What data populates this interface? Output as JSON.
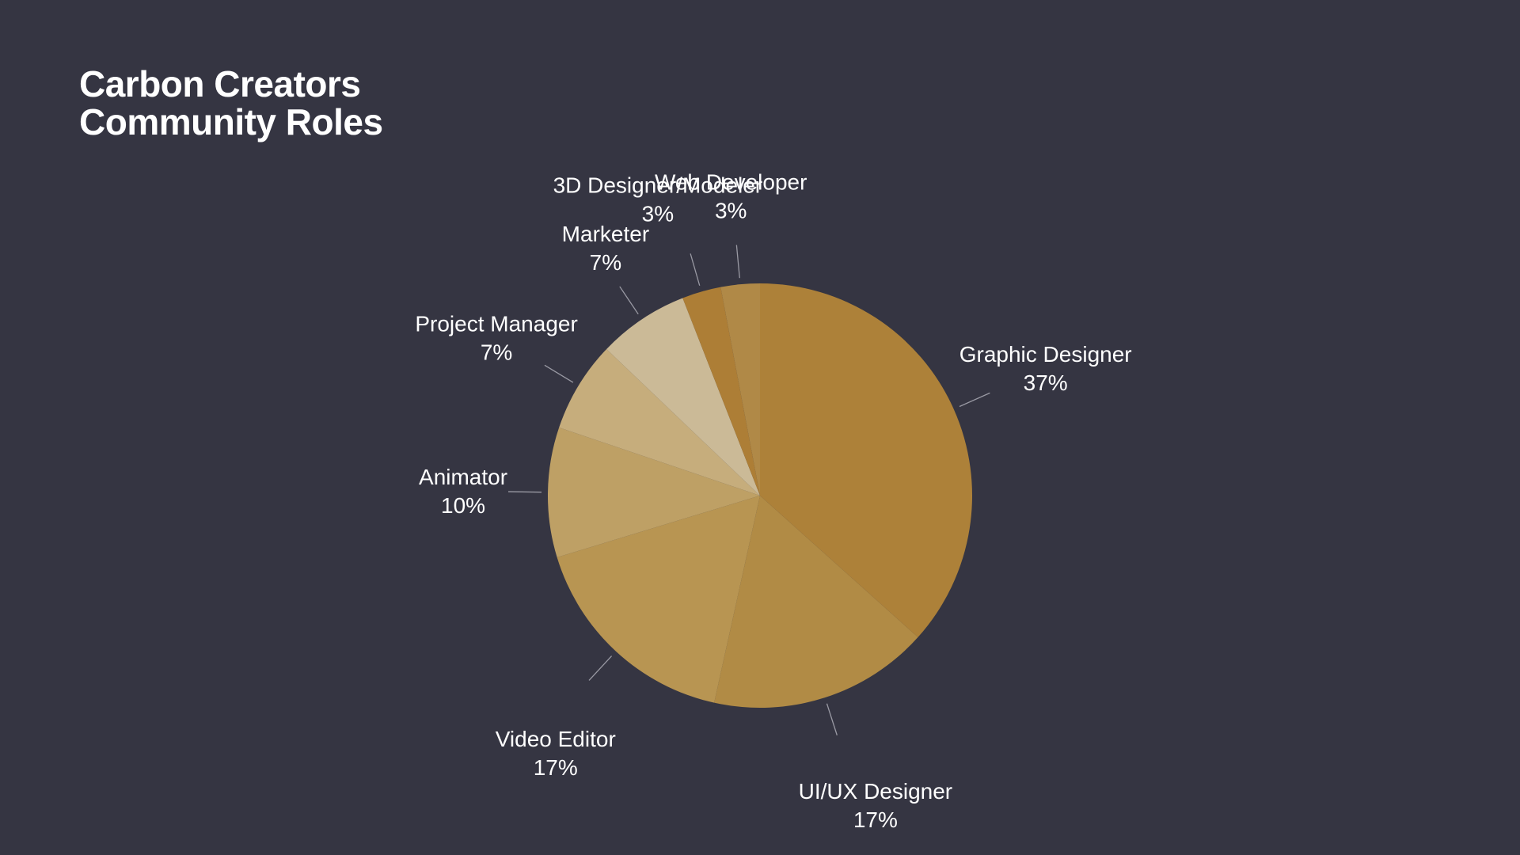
{
  "title_lines": [
    "Carbon Creators",
    "Community Roles"
  ],
  "chart_data": {
    "type": "pie",
    "title": "Carbon Creators Community Roles",
    "start_angle_deg": 0,
    "direction": "clockwise",
    "slices": [
      {
        "label": "Graphic Designer",
        "value": 37,
        "value_label": "37%",
        "color": "#ad8139"
      },
      {
        "label": "UI/UX Designer",
        "value": 17,
        "value_label": "17%",
        "color": "#b18b45"
      },
      {
        "label": "Video Editor",
        "value": 17,
        "value_label": "17%",
        "color": "#b89552"
      },
      {
        "label": "Animator",
        "value": 10,
        "value_label": "10%",
        "color": "#bea065"
      },
      {
        "label": "Project Manager",
        "value": 7,
        "value_label": "7%",
        "color": "#c6ad7c"
      },
      {
        "label": "Marketer",
        "value": 7,
        "value_label": "7%",
        "color": "#cbba97"
      },
      {
        "label": "3D Designer/Modeler",
        "value": 3,
        "value_label": "3%",
        "color": "#ad7e36"
      },
      {
        "label": "Web Developer",
        "value": 3,
        "value_label": "3%",
        "color": "#b08947"
      }
    ]
  }
}
